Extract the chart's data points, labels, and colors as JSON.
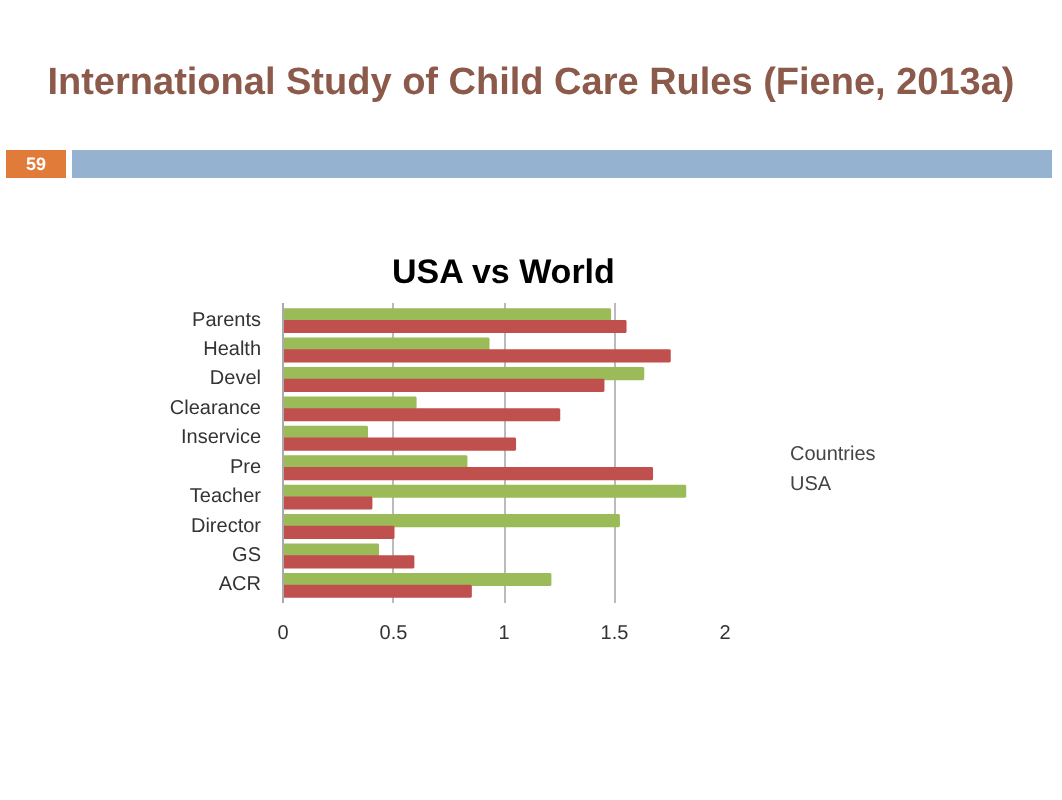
{
  "chart_data": {
    "type": "bar",
    "orientation": "horizontal",
    "title": "USA vs World",
    "annotations": [
      "International Study of Child Care Rules (Fiene, 2013a)",
      "59"
    ],
    "categories": [
      "Parents",
      "Health",
      "Devel",
      "Clearance",
      "Inservice",
      "Pre",
      "Teacher",
      "Director",
      "GS",
      "ACR"
    ],
    "series": [
      {
        "name": "Countries",
        "color": "#9bbb59",
        "values": [
          1.48,
          0.93,
          1.63,
          0.6,
          0.38,
          0.83,
          1.82,
          1.52,
          0.43,
          1.21
        ]
      },
      {
        "name": "USA",
        "color": "#c0504d",
        "values": [
          1.55,
          1.75,
          1.45,
          1.25,
          1.05,
          1.67,
          0.4,
          0.5,
          0.59,
          0.85
        ]
      }
    ],
    "xlim": [
      0,
      2
    ],
    "xticks": [
      0,
      0.5,
      1,
      1.5,
      2
    ],
    "grid": "x",
    "legend": "right"
  }
}
